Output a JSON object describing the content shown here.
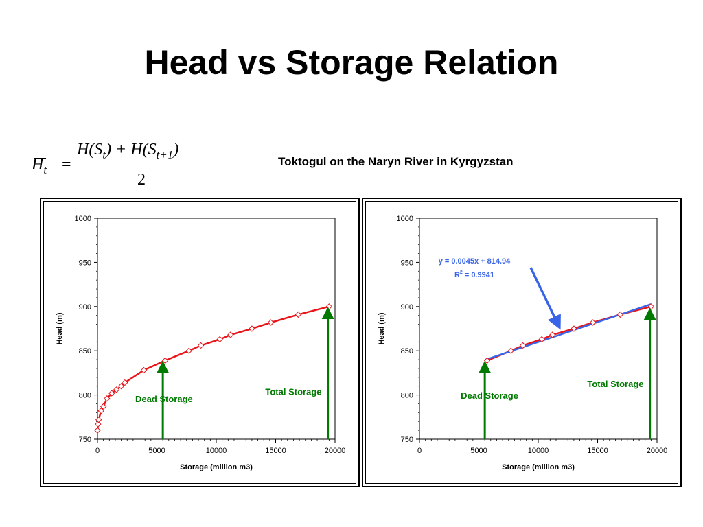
{
  "title": "Head vs Storage Relation",
  "subtitle": "Toktogul on the Naryn River in Kyrgyzstan",
  "formula": {
    "lhs": "H",
    "lhs_sub": "t",
    "equals": "=",
    "numerator_a": "H(S",
    "numerator_a_sub": "t",
    "numerator_b": ") + H(S",
    "numerator_b_sub": "t+1",
    "numerator_c": ")",
    "denominator": "2"
  },
  "chart_data": [
    {
      "type": "line",
      "xlabel": "Storage (million m3)",
      "ylabel": "Head (m)",
      "xlim": [
        0,
        20000
      ],
      "ylim": [
        750,
        1000
      ],
      "xticks": [
        0,
        5000,
        10000,
        15000,
        20000
      ],
      "yticks": [
        750,
        800,
        850,
        900,
        950,
        1000
      ],
      "grid": false,
      "series": [
        {
          "color": "#e8151b",
          "marker": "diamond",
          "x": [
            0,
            50,
            100,
            300,
            500,
            800,
            1200,
            1600,
            2000,
            2300,
            3900,
            5700,
            7700,
            8700,
            10300,
            11200,
            13000,
            14600,
            16900,
            19500
          ],
          "y": [
            760,
            767,
            772,
            782,
            787,
            796,
            802,
            806,
            810,
            814,
            828,
            839,
            850,
            856,
            863,
            868,
            875,
            882,
            891,
            900
          ]
        }
      ],
      "annotations": [
        {
          "label": "Dead Storage",
          "color": "#007a00",
          "arrow_x": 5500,
          "arrow_from_y": 750,
          "arrow_to_y": 838,
          "label_x": 5600,
          "label_y": 792
        },
        {
          "label": "Total Storage",
          "color": "#007a00",
          "arrow_x": 19400,
          "arrow_from_y": 750,
          "arrow_to_y": 899,
          "label_x": 16500,
          "label_y": 800
        }
      ]
    },
    {
      "type": "line",
      "xlabel": "Storage (million m3)",
      "ylabel": "Head (m)",
      "xlim": [
        0,
        20000
      ],
      "ylim": [
        750,
        1000
      ],
      "xticks": [
        0,
        5000,
        10000,
        15000,
        20000
      ],
      "yticks": [
        750,
        800,
        850,
        900,
        950,
        1000
      ],
      "grid": false,
      "series": [
        {
          "color": "#e8151b",
          "marker": "diamond",
          "x": [
            5700,
            7700,
            8700,
            10300,
            11200,
            13000,
            14600,
            16900,
            19500
          ],
          "y": [
            839,
            850,
            856,
            863,
            868,
            875,
            882,
            891,
            900
          ]
        },
        {
          "color": "#3a64e8",
          "marker": "none",
          "x": [
            5500,
            19500
          ],
          "y": [
            839.69,
            902.69
          ]
        }
      ],
      "trendline_label": {
        "equation": "y = 0.0045x + 814.94",
        "r2_prefix": "R",
        "r2_exp": "2",
        "r2_value": " = 0.9941",
        "color": "#3a64e8"
      },
      "annotations": [
        {
          "label": "Dead Storage",
          "color": "#007a00",
          "arrow_x": 5500,
          "arrow_from_y": 750,
          "arrow_to_y": 838,
          "label_x": 5900,
          "label_y": 796
        },
        {
          "label": "Total Storage",
          "color": "#007a00",
          "arrow_x": 19400,
          "arrow_from_y": 750,
          "arrow_to_y": 898,
          "label_x": 16500,
          "label_y": 809
        }
      ]
    }
  ]
}
